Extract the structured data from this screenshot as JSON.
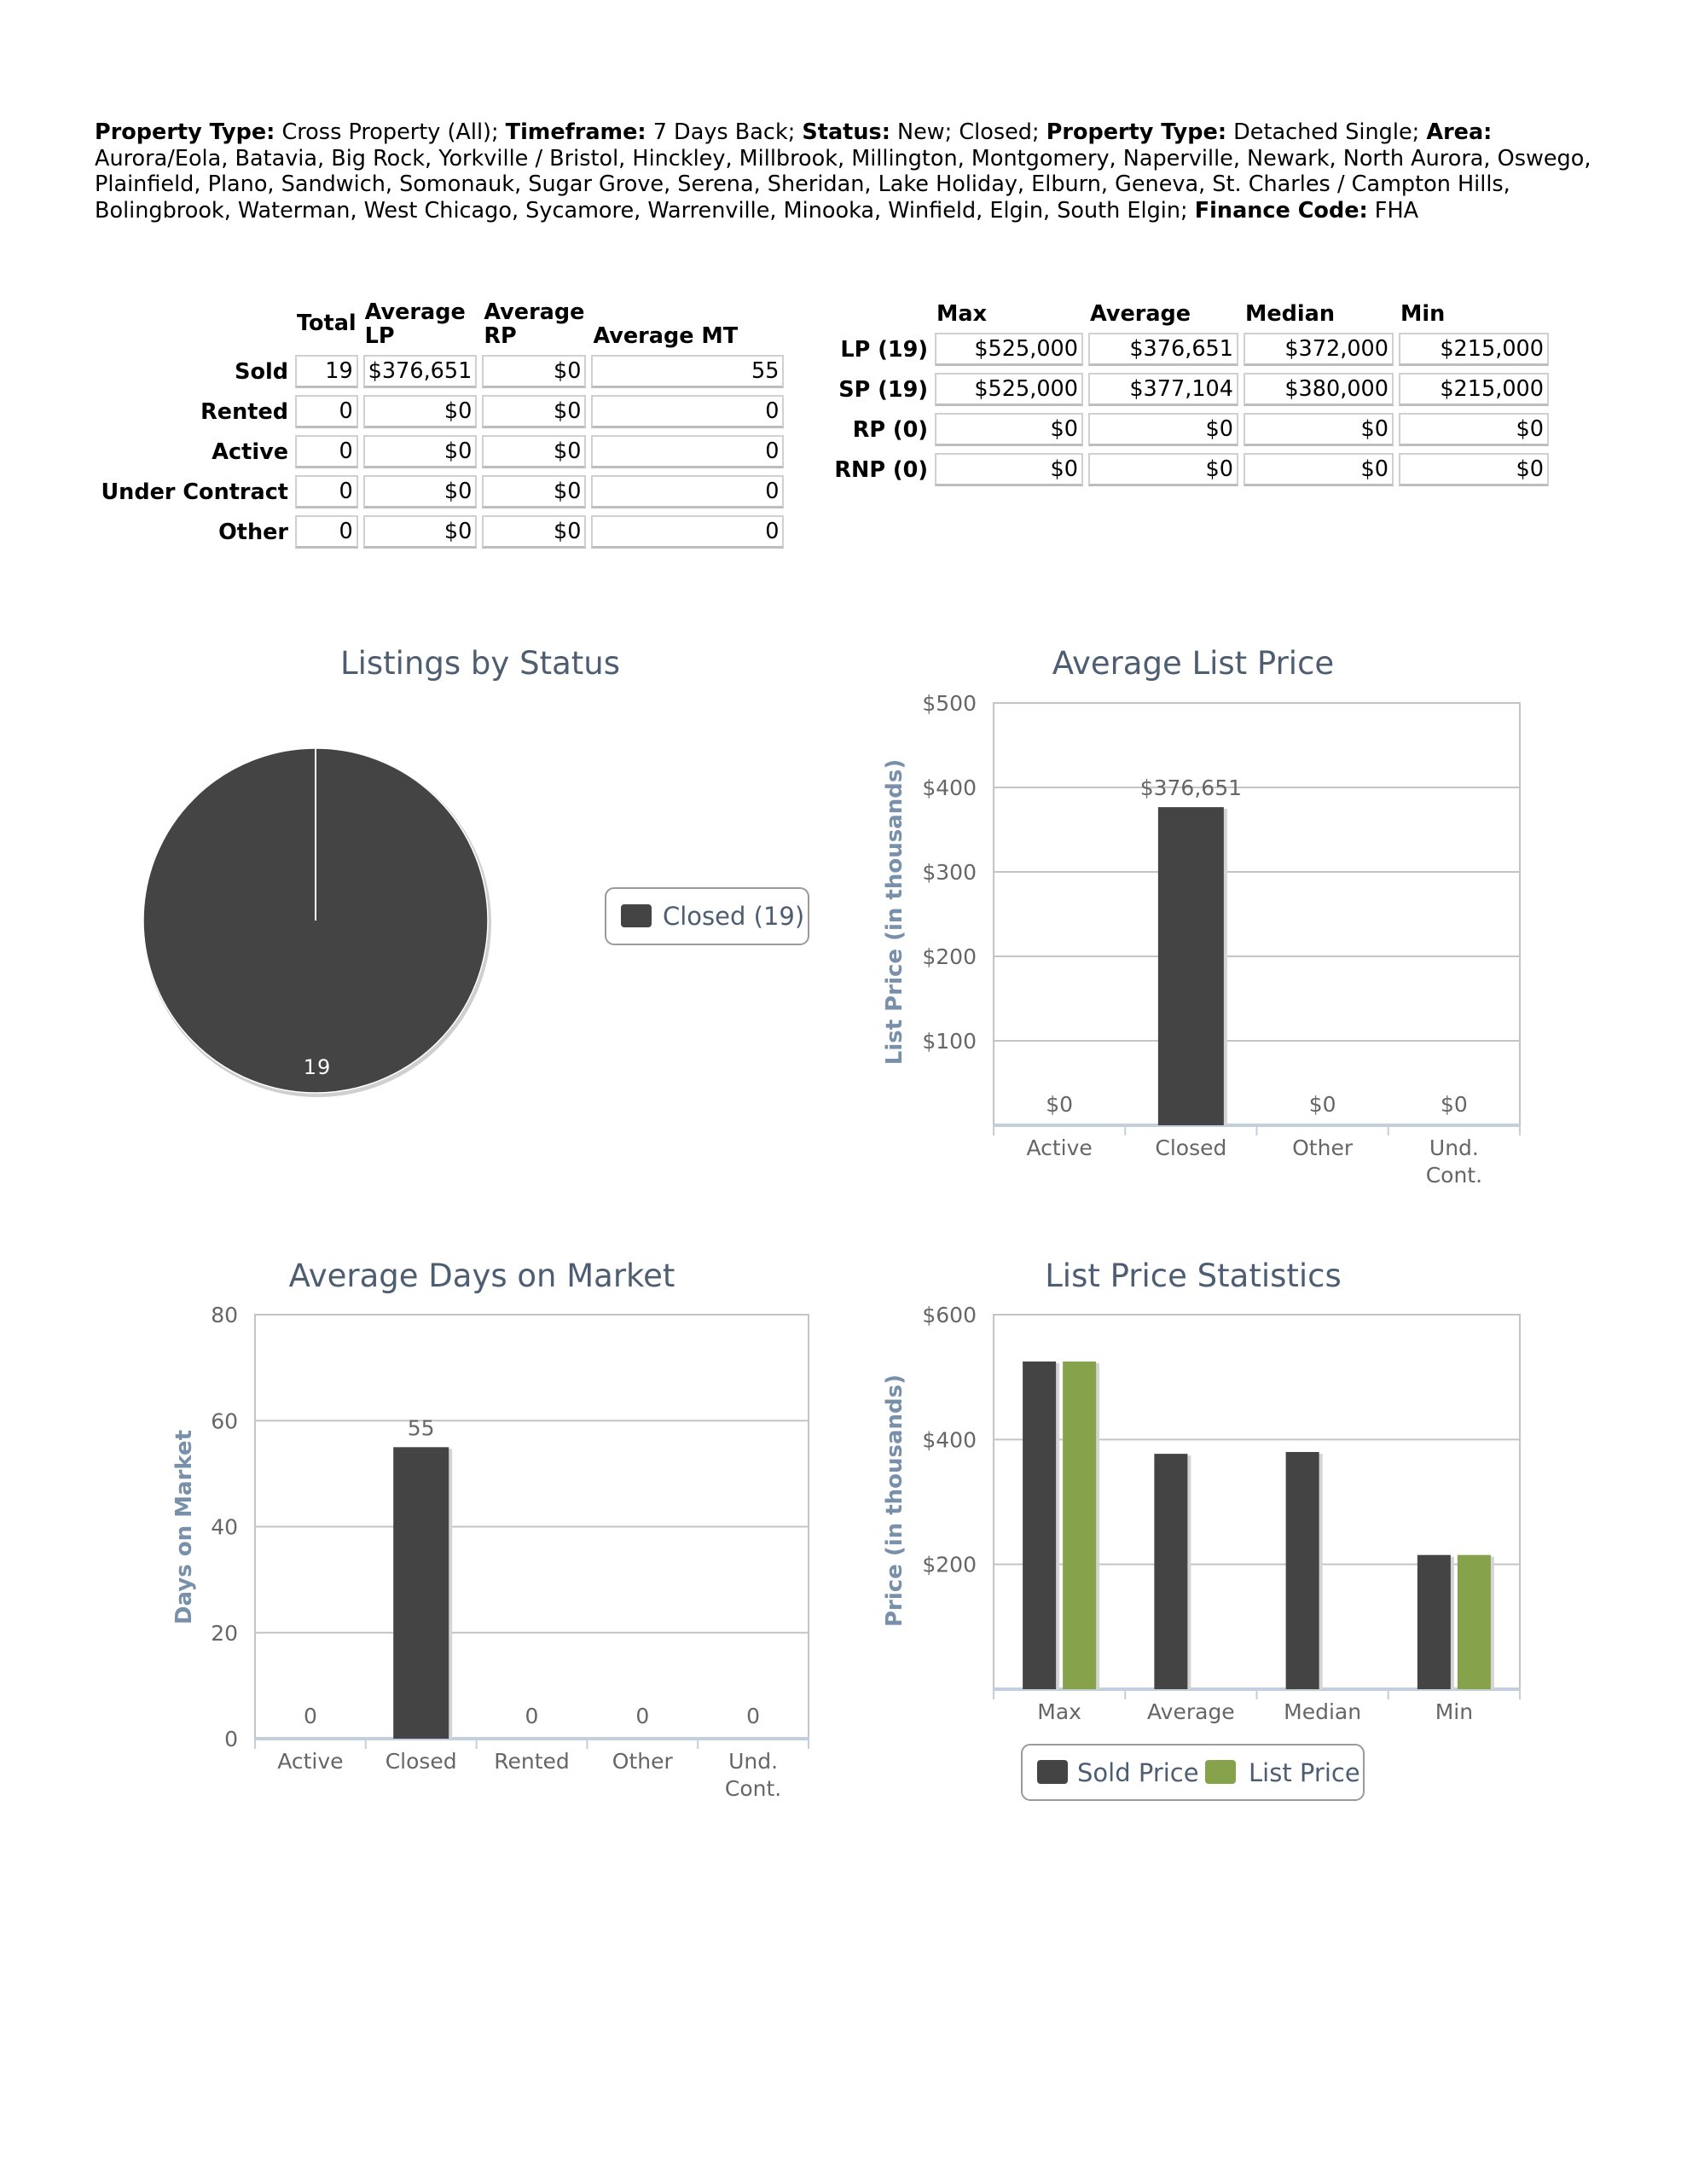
{
  "criteria": [
    {
      "label": "Property Type:",
      "value": " Cross Property (All); "
    },
    {
      "label": "Timeframe:",
      "value": " 7 Days Back; "
    },
    {
      "label": "Status:",
      "value": " New; Closed; "
    },
    {
      "label": "Property Type:",
      "value": " Detached Single; "
    },
    {
      "label": "Area:",
      "value": " Aurora/Eola, Batavia, Big Rock, Yorkville / Bristol, Hinckley, Millbrook, Millington, Montgomery, Naperville, Newark, North Aurora, Oswego, Plainfield, Plano, Sandwich, Somonauk, Sugar Grove, Serena, Sheridan, Lake Holiday, Elburn, Geneva, St. Charles / Campton Hills, Bolingbrook, Waterman, West Chicago, Sycamore, Warrenville, Minooka, Winfield, Elgin, South Elgin; "
    },
    {
      "label": "Finance Code:",
      "value": " FHA"
    }
  ],
  "summary_table": {
    "headers": [
      "Total",
      "Average LP",
      "Average RP",
      "Average MT"
    ],
    "rows": [
      {
        "label": "Sold",
        "values": [
          "19",
          "$376,651",
          "$0",
          "55"
        ]
      },
      {
        "label": "Rented",
        "values": [
          "0",
          "$0",
          "$0",
          "0"
        ]
      },
      {
        "label": "Active",
        "values": [
          "0",
          "$0",
          "$0",
          "0"
        ]
      },
      {
        "label": "Under Contract",
        "values": [
          "0",
          "$0",
          "$0",
          "0"
        ]
      },
      {
        "label": "Other",
        "values": [
          "0",
          "$0",
          "$0",
          "0"
        ]
      }
    ]
  },
  "price_table": {
    "headers": [
      "Max",
      "Average",
      "Median",
      "Min"
    ],
    "rows": [
      {
        "label": "LP (19)",
        "values": [
          "$525,000",
          "$376,651",
          "$372,000",
          "$215,000"
        ]
      },
      {
        "label": "SP (19)",
        "values": [
          "$525,000",
          "$377,104",
          "$380,000",
          "$215,000"
        ]
      },
      {
        "label": "RP (0)",
        "values": [
          "$0",
          "$0",
          "$0",
          "$0"
        ]
      },
      {
        "label": "RNP (0)",
        "values": [
          "$0",
          "$0",
          "$0",
          "$0"
        ]
      }
    ]
  },
  "colors": {
    "dark": "#444444",
    "green": "#86a24a",
    "title": "#4d5d72",
    "axis_title": "#7890aa",
    "tick": "#666666",
    "grid": "#c4c4c4"
  },
  "chart_data": [
    {
      "type": "pie",
      "title": "Listings by Status",
      "slices": [
        {
          "name": "Closed",
          "value": 19,
          "label": "19"
        }
      ],
      "legend": [
        {
          "label": "Closed (19)",
          "color": "#444444"
        }
      ],
      "legend_position": "right"
    },
    {
      "type": "bar",
      "title": "Average List Price",
      "ylabel": "List Price (in thousands)",
      "ylim": [
        0,
        500
      ],
      "yticks": [
        {
          "value": 100,
          "label": "$100"
        },
        {
          "value": 200,
          "label": "$200"
        },
        {
          "value": 300,
          "label": "$300"
        },
        {
          "value": 400,
          "label": "$400"
        },
        {
          "value": 500,
          "label": "$500"
        }
      ],
      "categories": [
        [
          "Active"
        ],
        [
          "Closed"
        ],
        [
          "Other"
        ],
        [
          "Und.",
          "Cont."
        ]
      ],
      "series": [
        {
          "name": "Average List Price",
          "color": "#444444",
          "values": [
            0,
            376.651,
            0,
            0
          ],
          "labels": [
            "$0",
            "$376,651",
            "$0",
            "$0"
          ]
        }
      ],
      "grid": true
    },
    {
      "type": "bar",
      "title": "Average Days on Market",
      "ylabel": "Days on Market",
      "ylim": [
        0,
        80
      ],
      "yticks": [
        {
          "value": 0,
          "label": "0"
        },
        {
          "value": 20,
          "label": "20"
        },
        {
          "value": 40,
          "label": "40"
        },
        {
          "value": 60,
          "label": "60"
        },
        {
          "value": 80,
          "label": "80"
        }
      ],
      "categories": [
        [
          "Active"
        ],
        [
          "Closed"
        ],
        [
          "Rented"
        ],
        [
          "Other"
        ],
        [
          "Und.",
          "Cont."
        ]
      ],
      "series": [
        {
          "name": "Average Days on Market",
          "color": "#444444",
          "values": [
            0,
            55,
            0,
            0,
            0
          ],
          "labels": [
            "0",
            "55",
            "0",
            "0",
            "0"
          ]
        }
      ],
      "grid": true
    },
    {
      "type": "bar",
      "title": "List Price Statistics",
      "ylabel": "Price (in thousands)",
      "ylim": [
        0,
        600
      ],
      "yticks": [
        {
          "value": 200,
          "label": "$200"
        },
        {
          "value": 400,
          "label": "$400"
        },
        {
          "value": 600,
          "label": "$600"
        }
      ],
      "categories": [
        [
          "Max"
        ],
        [
          "Average"
        ],
        [
          "Median"
        ],
        [
          "Min"
        ]
      ],
      "series": [
        {
          "name": "Sold Price",
          "color": "#444444",
          "values": [
            525,
            377.104,
            380,
            215
          ]
        },
        {
          "name": "List Price",
          "color": "#86a24a",
          "values": [
            525,
            null,
            null,
            215
          ]
        }
      ],
      "legend_position": "bottom",
      "grid": true
    }
  ]
}
